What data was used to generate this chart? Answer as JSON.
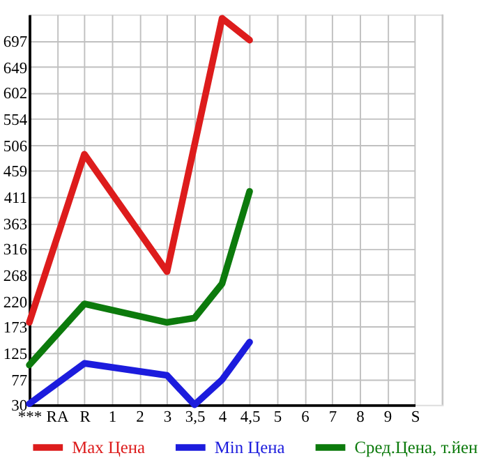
{
  "chart_data": {
    "type": "line",
    "categories": [
      "***",
      "RA",
      "R",
      "1",
      "2",
      "3",
      "3,5",
      "4",
      "4,5",
      "5",
      "6",
      "7",
      "8",
      "9",
      "S"
    ],
    "series": [
      {
        "name": "Max Цена",
        "color": "#dd1c1c",
        "values": [
          181,
          null,
          489,
          null,
          null,
          274,
          null,
          738,
          698,
          null,
          null,
          null,
          null,
          null,
          null
        ]
      },
      {
        "name": "Min Цена",
        "color": "#1c1cdd",
        "values": [
          32,
          null,
          106,
          null,
          null,
          84,
          30,
          76,
          145,
          null,
          null,
          null,
          null,
          null,
          null
        ]
      },
      {
        "name": "Сред.Цена, т.йен",
        "color": "#0c7a0c",
        "values": [
          103,
          null,
          215,
          null,
          null,
          181,
          189,
          252,
          421,
          null,
          null,
          null,
          null,
          null,
          null
        ]
      }
    ],
    "ylim": [
      30,
      745
    ],
    "yticks": [
      30,
      77,
      125,
      173,
      220,
      268,
      316,
      363,
      411,
      459,
      506,
      554,
      602,
      649,
      697
    ],
    "grid": true,
    "legend": "bottom",
    "marker": "none",
    "line_style": "solid"
  }
}
